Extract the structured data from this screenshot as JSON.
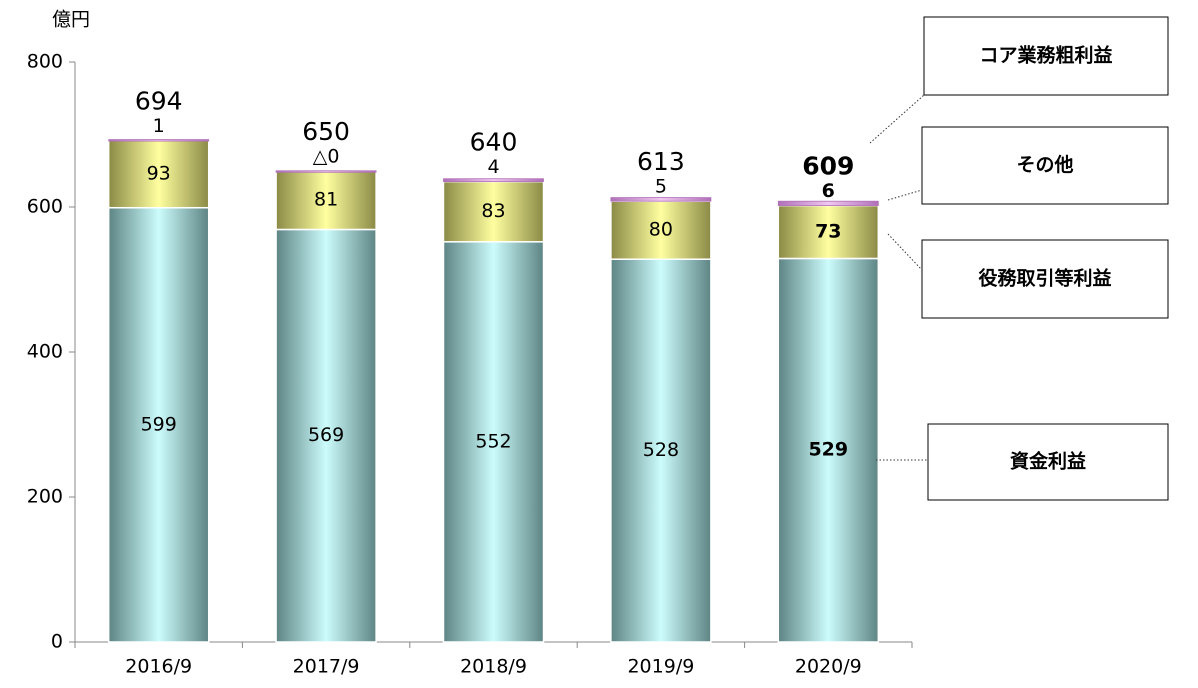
{
  "chart_data": {
    "type": "stacked_bar",
    "y_unit": "億円",
    "categories": [
      "2016/9",
      "2017/9",
      "2018/9",
      "2019/9",
      "2020/9"
    ],
    "series": [
      {
        "name": "資金利益",
        "color": "#5e8484",
        "values": [
          599,
          569,
          552,
          528,
          529
        ]
      },
      {
        "name": "役務取引等利益",
        "color": "#8a8a46",
        "values": [
          93,
          81,
          83,
          80,
          73
        ]
      },
      {
        "name": "その他",
        "color": "#b070b8",
        "values": [
          1,
          0,
          4,
          5,
          6
        ],
        "value_labels": [
          "1",
          "△0",
          "4",
          "5",
          "6"
        ]
      }
    ],
    "total_name": "コア業務粗利益",
    "totals": [
      694,
      650,
      640,
      613,
      609
    ],
    "ylim": [
      0,
      800
    ],
    "yticks": [
      0,
      200,
      400,
      600,
      800
    ]
  }
}
